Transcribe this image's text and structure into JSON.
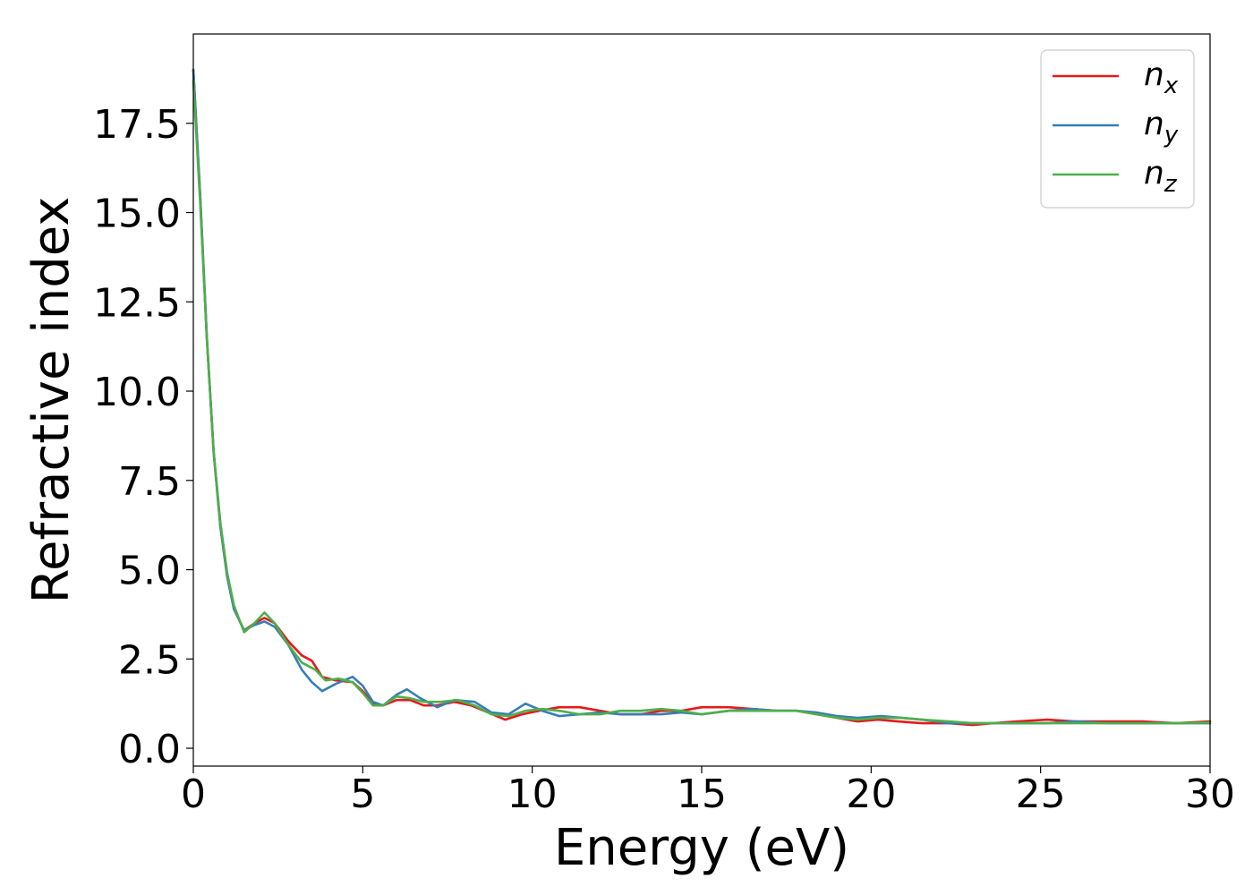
{
  "chart_data": {
    "type": "line",
    "title": "",
    "xlabel": "Energy (eV)",
    "ylabel": "Refractive index",
    "xlim": [
      0,
      30
    ],
    "ylim": [
      -0.5,
      20
    ],
    "xticks": [
      0,
      5,
      10,
      15,
      20,
      25,
      30
    ],
    "xtick_labels": [
      "0",
      "5",
      "10",
      "15",
      "20",
      "25",
      "30"
    ],
    "yticks": [
      0.0,
      2.5,
      5.0,
      7.5,
      10.0,
      12.5,
      15.0,
      17.5
    ],
    "ytick_labels": [
      "0.0",
      "2.5",
      "5.0",
      "7.5",
      "10.0",
      "12.5",
      "15.0",
      "17.5"
    ],
    "grid": false,
    "legend_position": "top-right",
    "series": [
      {
        "name": "n_x",
        "legend_base": "n",
        "legend_sub": "x",
        "color": "#e41a1c",
        "points": [
          [
            0,
            19.0
          ],
          [
            0.2,
            15.5
          ],
          [
            0.4,
            11.5
          ],
          [
            0.6,
            8.3
          ],
          [
            0.8,
            6.2
          ],
          [
            1.0,
            4.8
          ],
          [
            1.2,
            3.9
          ],
          [
            1.5,
            3.3
          ],
          [
            1.8,
            3.5
          ],
          [
            2.1,
            3.65
          ],
          [
            2.4,
            3.5
          ],
          [
            2.8,
            3.0
          ],
          [
            3.2,
            2.6
          ],
          [
            3.5,
            2.45
          ],
          [
            3.8,
            2.0
          ],
          [
            4.2,
            1.9
          ],
          [
            4.7,
            1.85
          ],
          [
            5.0,
            1.6
          ],
          [
            5.3,
            1.25
          ],
          [
            5.6,
            1.2
          ],
          [
            6.0,
            1.35
          ],
          [
            6.4,
            1.35
          ],
          [
            6.8,
            1.2
          ],
          [
            7.2,
            1.2
          ],
          [
            7.7,
            1.3
          ],
          [
            8.2,
            1.2
          ],
          [
            8.7,
            1.0
          ],
          [
            9.2,
            0.8
          ],
          [
            9.7,
            0.95
          ],
          [
            10.2,
            1.05
          ],
          [
            10.8,
            1.15
          ],
          [
            11.4,
            1.15
          ],
          [
            12.0,
            1.05
          ],
          [
            12.6,
            0.95
          ],
          [
            13.2,
            0.95
          ],
          [
            13.8,
            1.05
          ],
          [
            14.4,
            1.05
          ],
          [
            15.0,
            1.15
          ],
          [
            15.8,
            1.15
          ],
          [
            16.5,
            1.1
          ],
          [
            17.2,
            1.05
          ],
          [
            17.8,
            1.05
          ],
          [
            18.4,
            0.95
          ],
          [
            19.0,
            0.85
          ],
          [
            19.6,
            0.75
          ],
          [
            20.2,
            0.8
          ],
          [
            20.8,
            0.75
          ],
          [
            21.5,
            0.7
          ],
          [
            22.3,
            0.7
          ],
          [
            23.0,
            0.65
          ],
          [
            23.6,
            0.7
          ],
          [
            24.3,
            0.75
          ],
          [
            25.2,
            0.8
          ],
          [
            26.0,
            0.75
          ],
          [
            27.0,
            0.75
          ],
          [
            28.0,
            0.75
          ],
          [
            29.0,
            0.7
          ],
          [
            30.0,
            0.75
          ]
        ]
      },
      {
        "name": "n_y",
        "legend_base": "n",
        "legend_sub": "y",
        "color": "#377eb8",
        "points": [
          [
            0,
            19.0
          ],
          [
            0.2,
            15.5
          ],
          [
            0.4,
            11.5
          ],
          [
            0.6,
            8.3
          ],
          [
            0.8,
            6.2
          ],
          [
            1.0,
            4.8
          ],
          [
            1.2,
            3.9
          ],
          [
            1.5,
            3.3
          ],
          [
            1.8,
            3.45
          ],
          [
            2.1,
            3.55
          ],
          [
            2.4,
            3.4
          ],
          [
            2.8,
            2.9
          ],
          [
            3.2,
            2.2
          ],
          [
            3.5,
            1.85
          ],
          [
            3.8,
            1.6
          ],
          [
            4.2,
            1.8
          ],
          [
            4.7,
            2.0
          ],
          [
            5.0,
            1.75
          ],
          [
            5.3,
            1.3
          ],
          [
            5.6,
            1.2
          ],
          [
            6.0,
            1.5
          ],
          [
            6.3,
            1.65
          ],
          [
            6.7,
            1.4
          ],
          [
            7.2,
            1.15
          ],
          [
            7.7,
            1.35
          ],
          [
            8.3,
            1.3
          ],
          [
            8.8,
            1.0
          ],
          [
            9.3,
            0.95
          ],
          [
            9.8,
            1.25
          ],
          [
            10.3,
            1.05
          ],
          [
            10.8,
            0.9
          ],
          [
            11.4,
            0.95
          ],
          [
            12.0,
            1.0
          ],
          [
            12.6,
            0.95
          ],
          [
            13.2,
            0.95
          ],
          [
            13.8,
            0.95
          ],
          [
            14.4,
            1.0
          ],
          [
            15.0,
            0.95
          ],
          [
            15.8,
            1.05
          ],
          [
            16.5,
            1.1
          ],
          [
            17.2,
            1.05
          ],
          [
            17.8,
            1.05
          ],
          [
            18.4,
            1.0
          ],
          [
            19.0,
            0.9
          ],
          [
            19.6,
            0.85
          ],
          [
            20.3,
            0.9
          ],
          [
            20.9,
            0.85
          ],
          [
            21.5,
            0.8
          ],
          [
            22.3,
            0.7
          ],
          [
            23.0,
            0.7
          ],
          [
            23.6,
            0.7
          ],
          [
            24.3,
            0.7
          ],
          [
            25.2,
            0.7
          ],
          [
            26.0,
            0.75
          ],
          [
            27.0,
            0.7
          ],
          [
            28.0,
            0.7
          ],
          [
            29.0,
            0.7
          ],
          [
            30.0,
            0.7
          ]
        ]
      },
      {
        "name": "n_z",
        "legend_base": "n",
        "legend_sub": "z",
        "color": "#4daf4a",
        "points": [
          [
            0,
            18.7
          ],
          [
            0.2,
            15.3
          ],
          [
            0.4,
            11.5
          ],
          [
            0.6,
            8.3
          ],
          [
            0.8,
            6.3
          ],
          [
            1.0,
            4.9
          ],
          [
            1.2,
            4.0
          ],
          [
            1.5,
            3.25
          ],
          [
            1.8,
            3.5
          ],
          [
            2.1,
            3.8
          ],
          [
            2.4,
            3.5
          ],
          [
            2.8,
            2.9
          ],
          [
            3.2,
            2.4
          ],
          [
            3.6,
            2.2
          ],
          [
            3.9,
            1.9
          ],
          [
            4.3,
            1.95
          ],
          [
            4.7,
            1.85
          ],
          [
            5.0,
            1.55
          ],
          [
            5.3,
            1.2
          ],
          [
            5.6,
            1.2
          ],
          [
            6.0,
            1.45
          ],
          [
            6.4,
            1.4
          ],
          [
            6.8,
            1.3
          ],
          [
            7.3,
            1.3
          ],
          [
            7.8,
            1.35
          ],
          [
            8.3,
            1.2
          ],
          [
            8.8,
            0.95
          ],
          [
            9.3,
            0.9
          ],
          [
            9.8,
            1.05
          ],
          [
            10.3,
            1.1
          ],
          [
            10.8,
            1.05
          ],
          [
            11.4,
            0.95
          ],
          [
            12.0,
            0.95
          ],
          [
            12.6,
            1.05
          ],
          [
            13.2,
            1.05
          ],
          [
            13.8,
            1.1
          ],
          [
            14.4,
            1.05
          ],
          [
            15.0,
            0.95
          ],
          [
            15.8,
            1.05
          ],
          [
            16.5,
            1.05
          ],
          [
            17.2,
            1.05
          ],
          [
            17.8,
            1.05
          ],
          [
            18.4,
            0.95
          ],
          [
            19.0,
            0.85
          ],
          [
            19.6,
            0.8
          ],
          [
            20.2,
            0.85
          ],
          [
            20.9,
            0.85
          ],
          [
            21.5,
            0.8
          ],
          [
            22.3,
            0.75
          ],
          [
            23.0,
            0.7
          ],
          [
            23.6,
            0.7
          ],
          [
            24.3,
            0.7
          ],
          [
            25.2,
            0.7
          ],
          [
            26.0,
            0.7
          ],
          [
            27.0,
            0.7
          ],
          [
            28.0,
            0.7
          ],
          [
            29.0,
            0.7
          ],
          [
            30.0,
            0.72
          ]
        ]
      }
    ]
  }
}
